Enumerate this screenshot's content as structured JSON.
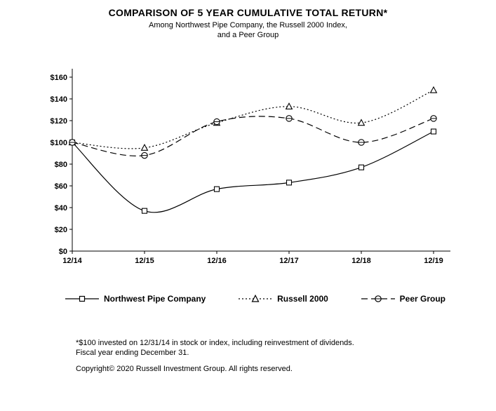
{
  "title": "COMPARISON OF 5 YEAR CUMULATIVE TOTAL RETURN*",
  "subtitle_line1": "Among Northwest Pipe Company, the Russell 2000 Index,",
  "subtitle_line2": "and a Peer Group",
  "chart_data": {
    "type": "line",
    "x": [
      "12/14",
      "12/15",
      "12/16",
      "12/17",
      "12/18",
      "12/19"
    ],
    "series": [
      {
        "name": "Northwest Pipe Company",
        "line": "solid",
        "marker": "square",
        "values": [
          100,
          37,
          57,
          63,
          77,
          110
        ]
      },
      {
        "name": "Russell 2000",
        "line": "dotted",
        "marker": "triangle",
        "values": [
          100,
          95,
          118,
          133,
          118,
          148
        ]
      },
      {
        "name": "Peer Group",
        "line": "dashed",
        "marker": "circle",
        "values": [
          100,
          88,
          119,
          122,
          100,
          122
        ]
      }
    ],
    "ylim": [
      0,
      160
    ],
    "ytick_step": 20,
    "ytick_labels": [
      "$0",
      "$20",
      "$40",
      "$60",
      "$80",
      "$100",
      "$120",
      "$140",
      "$160"
    ],
    "grid": false,
    "legend_position": "bottom",
    "line_color": "#000000",
    "background_color": "#ffffff"
  },
  "footnote_line1": "*$100 invested on 12/31/14 in stock or index, including reinvestment of dividends.",
  "footnote_line2": "Fiscal year ending December 31.",
  "copyright": "Copyright© 2020 Russell Investment Group. All rights reserved."
}
